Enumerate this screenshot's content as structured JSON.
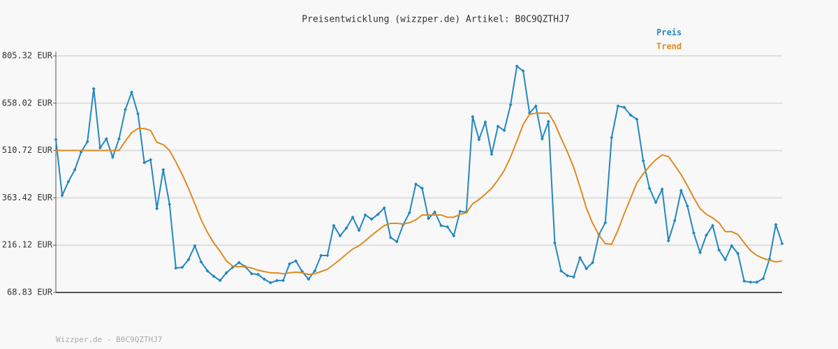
{
  "chart_data": {
    "type": "line",
    "title": "Preisentwicklung (wizzper.de) Artikel: B0C9QZTHJ7",
    "footer": "Wizzper.de - B0C9QZTHJ7",
    "categories": [
      null,
      null,
      null,
      null,
      null,
      null,
      null,
      null,
      null,
      null,
      null,
      null,
      null,
      null,
      null,
      null,
      null,
      null,
      null,
      null,
      null,
      null,
      null,
      null,
      null,
      null,
      null,
      null,
      null,
      null,
      null,
      null,
      null,
      null,
      null,
      null,
      null,
      null,
      null,
      null,
      null,
      null,
      null,
      null,
      null,
      null,
      null,
      null,
      null,
      null,
      null,
      null,
      null,
      null,
      null,
      null,
      null,
      null,
      null,
      null,
      null,
      null,
      null,
      null,
      null,
      null,
      null,
      null,
      null,
      null,
      null,
      null,
      null,
      null,
      null,
      null,
      null,
      null,
      null,
      null,
      null,
      null,
      null,
      null,
      null,
      null,
      null,
      null,
      null,
      null,
      null,
      null,
      null,
      null,
      null,
      null,
      null,
      null,
      null,
      null,
      null,
      null,
      null,
      null,
      null,
      null,
      null,
      null,
      null,
      null,
      null,
      null,
      null,
      null,
      null,
      null
    ],
    "series": [
      {
        "name": "Preis",
        "color": "#2288c0",
        "markers": true,
        "values": [
          545,
          371,
          414,
          451,
          506,
          538,
          703,
          519,
          547,
          490,
          547,
          638,
          692,
          625,
          473,
          482,
          330,
          451,
          343,
          145,
          147,
          171,
          214,
          164,
          136,
          119,
          106,
          130,
          147,
          162,
          149,
          127,
          125,
          110,
          99,
          106,
          106,
          158,
          167,
          134,
          110,
          136,
          184,
          184,
          277,
          245,
          269,
          303,
          262,
          310,
          297,
          312,
          332,
          240,
          227,
          280,
          317,
          406,
          393,
          299,
          319,
          277,
          273,
          245,
          321,
          319,
          616,
          545,
          599,
          499,
          586,
          573,
          653,
          773,
          758,
          627,
          649,
          547,
          601,
          223,
          136,
          121,
          117,
          177,
          143,
          162,
          249,
          286,
          551,
          649,
          645,
          621,
          608,
          479,
          393,
          349,
          390,
          230,
          293,
          386,
          338,
          254,
          193,
          247,
          277,
          201,
          171,
          214,
          190,
          104,
          101,
          101,
          112,
          173,
          280,
          221
        ]
      },
      {
        "name": "Trend",
        "color": "#e08a20",
        "markers": false,
        "values": [
          511,
          511,
          511,
          511,
          511,
          511,
          511,
          511,
          511,
          511,
          511,
          540,
          566,
          579,
          579,
          573,
          536,
          529,
          511,
          475,
          436,
          393,
          345,
          295,
          256,
          223,
          197,
          167,
          151,
          149,
          149,
          145,
          138,
          134,
          130,
          130,
          127,
          130,
          132,
          130,
          125,
          127,
          134,
          141,
          156,
          171,
          188,
          204,
          214,
          230,
          247,
          262,
          277,
          284,
          284,
          282,
          286,
          295,
          310,
          310,
          310,
          310,
          303,
          303,
          312,
          317,
          345,
          358,
          375,
          393,
          419,
          449,
          490,
          540,
          592,
          623,
          627,
          627,
          627,
          595,
          549,
          506,
          458,
          397,
          332,
          284,
          247,
          221,
          219,
          262,
          314,
          362,
          410,
          438,
          462,
          482,
          497,
          492,
          464,
          436,
          401,
          364,
          330,
          312,
          301,
          286,
          258,
          258,
          249,
          223,
          199,
          184,
          175,
          169,
          164,
          167
        ]
      }
    ],
    "ylim": [
      68.83,
      805.32
    ],
    "yticks": [
      {
        "value": 805.32,
        "label": "805.32 EUR"
      },
      {
        "value": 658.02,
        "label": "658.02 EUR"
      },
      {
        "value": 510.72,
        "label": "510.72 EUR"
      },
      {
        "value": 363.42,
        "label": "363.42 EUR"
      },
      {
        "value": 216.12,
        "label": "216.12 EUR"
      },
      {
        "value": 68.83,
        "label": "68.83 EUR"
      }
    ],
    "grid": true,
    "legend": "top-right"
  }
}
